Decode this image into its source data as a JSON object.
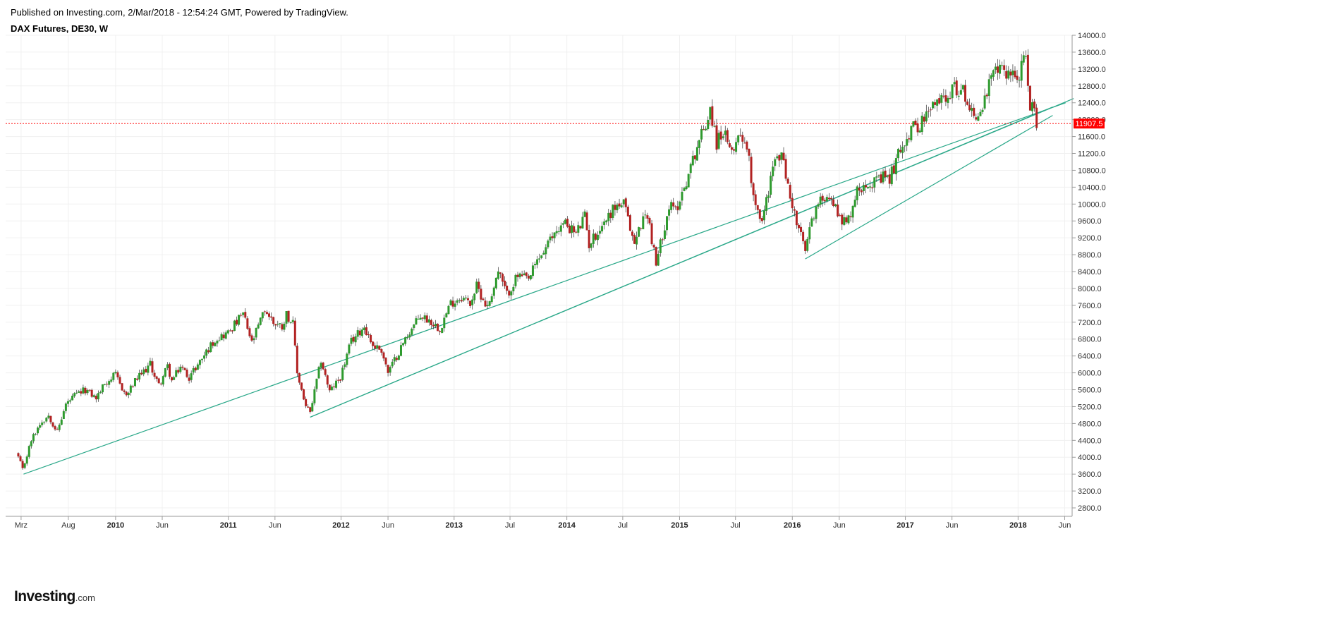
{
  "header": {
    "published": "Published on Investing.com, 2/Mar/2018 - 12:54:24 GMT, Powered by TradingView.",
    "symbol": "DAX Futures, DE30, W"
  },
  "logo": {
    "main": "Investing",
    "suffix": ".com"
  },
  "colors": {
    "up": "#2e9a2e",
    "down": "#b22222",
    "trendline": "#2aa889",
    "price_line": "#ff0000",
    "grid": "#f0f0f0",
    "axis": "#9a9a9a"
  },
  "chart_data": {
    "type": "candlestick",
    "title": "DAX Futures, DE30, W",
    "y_range": [
      2600,
      14000
    ],
    "x_range": [
      "2009-01-10",
      "2018-06-25"
    ],
    "y_ticks": [
      2800,
      3200,
      3600,
      4000,
      4400,
      4800,
      5200,
      5600,
      6000,
      6400,
      6800,
      7200,
      7600,
      8000,
      8400,
      8800,
      9200,
      9600,
      10000,
      10400,
      10800,
      11200,
      11600,
      12000,
      12400,
      12800,
      13200,
      13600,
      14000
    ],
    "y_tick_labels": [
      "2800.0",
      "3200.0",
      "3600.0",
      "4000.0",
      "4400.0",
      "4800.0",
      "5200.0",
      "5600.0",
      "6000.0",
      "6400.0",
      "6800.0",
      "7200.0",
      "7600.0",
      "8000.0",
      "8400.0",
      "8800.0",
      "9200.0",
      "9600.0",
      "10000.0",
      "10400.0",
      "10800.0",
      "11200.0",
      "11600.0",
      "12000.0",
      "12400.0",
      "12800.0",
      "13200.0",
      "13600.0",
      "14000.0"
    ],
    "x_ticks": [
      {
        "label": "Mrz",
        "date": "2009-03-01",
        "bold": false
      },
      {
        "label": "Aug",
        "date": "2009-08-01",
        "bold": false
      },
      {
        "label": "2010",
        "date": "2010-01-01",
        "bold": true
      },
      {
        "label": "Jun",
        "date": "2010-06-01",
        "bold": false
      },
      {
        "label": "2011",
        "date": "2011-01-01",
        "bold": true
      },
      {
        "label": "Jun",
        "date": "2011-06-01",
        "bold": false
      },
      {
        "label": "2012",
        "date": "2012-01-01",
        "bold": true
      },
      {
        "label": "Jun",
        "date": "2012-06-01",
        "bold": false
      },
      {
        "label": "2013",
        "date": "2013-01-01",
        "bold": true
      },
      {
        "label": "Jul",
        "date": "2013-07-01",
        "bold": false
      },
      {
        "label": "2014",
        "date": "2014-01-01",
        "bold": true
      },
      {
        "label": "Jul",
        "date": "2014-07-01",
        "bold": false
      },
      {
        "label": "2015",
        "date": "2015-01-01",
        "bold": true
      },
      {
        "label": "Jul",
        "date": "2015-07-01",
        "bold": false
      },
      {
        "label": "2016",
        "date": "2016-01-01",
        "bold": true
      },
      {
        "label": "Jun",
        "date": "2016-06-01",
        "bold": false
      },
      {
        "label": "2017",
        "date": "2017-01-01",
        "bold": true
      },
      {
        "label": "Jun",
        "date": "2017-06-01",
        "bold": false
      },
      {
        "label": "2018",
        "date": "2018-01-01",
        "bold": true
      },
      {
        "label": "Jun",
        "date": "2018-06-01",
        "bold": false
      }
    ],
    "current_price": 11907.5,
    "current_price_label": "11907.5",
    "price_path": [
      [
        "2009-02-20",
        4000
      ],
      [
        "2009-03-06",
        3700
      ],
      [
        "2009-04-03",
        4400
      ],
      [
        "2009-05-01",
        4800
      ],
      [
        "2009-05-29",
        5000
      ],
      [
        "2009-06-26",
        4600
      ],
      [
        "2009-07-24",
        5250
      ],
      [
        "2009-08-21",
        5450
      ],
      [
        "2009-09-25",
        5600
      ],
      [
        "2009-10-30",
        5400
      ],
      [
        "2009-11-27",
        5750
      ],
      [
        "2009-12-31",
        5950
      ],
      [
        "2010-02-05",
        5450
      ],
      [
        "2010-03-05",
        5800
      ],
      [
        "2010-04-23",
        6200
      ],
      [
        "2010-05-21",
        5700
      ],
      [
        "2010-06-18",
        6150
      ],
      [
        "2010-07-02",
        5800
      ],
      [
        "2010-07-30",
        6150
      ],
      [
        "2010-08-27",
        5900
      ],
      [
        "2010-09-24",
        6200
      ],
      [
        "2010-10-22",
        6500
      ],
      [
        "2010-11-19",
        6800
      ],
      [
        "2010-12-31",
        6950
      ],
      [
        "2011-02-18",
        7400
      ],
      [
        "2011-03-18",
        6700
      ],
      [
        "2011-04-29",
        7500
      ],
      [
        "2011-05-27",
        7200
      ],
      [
        "2011-06-24",
        7100
      ],
      [
        "2011-07-08",
        7400
      ],
      [
        "2011-07-29",
        7150
      ],
      [
        "2011-08-12",
        6000
      ],
      [
        "2011-09-09",
        5200
      ],
      [
        "2011-09-23",
        5050
      ],
      [
        "2011-10-28",
        6300
      ],
      [
        "2011-11-25",
        5550
      ],
      [
        "2011-12-30",
        5900
      ],
      [
        "2012-02-03",
        6750
      ],
      [
        "2012-03-16",
        7100
      ],
      [
        "2012-04-13",
        6650
      ],
      [
        "2012-05-11",
        6550
      ],
      [
        "2012-06-01",
        6000
      ],
      [
        "2012-06-29",
        6400
      ],
      [
        "2012-08-03",
        6900
      ],
      [
        "2012-09-14",
        7350
      ],
      [
        "2012-10-12",
        7250
      ],
      [
        "2012-11-16",
        7050
      ],
      [
        "2012-12-21",
        7650
      ],
      [
        "2013-01-25",
        7800
      ],
      [
        "2013-02-22",
        7650
      ],
      [
        "2013-03-15",
        8050
      ],
      [
        "2013-04-19",
        7550
      ],
      [
        "2013-05-24",
        8400
      ],
      [
        "2013-06-21",
        7850
      ],
      [
        "2013-07-26",
        8300
      ],
      [
        "2013-08-30",
        8200
      ],
      [
        "2013-09-27",
        8650
      ],
      [
        "2013-10-25",
        8950
      ],
      [
        "2013-11-29",
        9400
      ],
      [
        "2013-12-27",
        9550
      ],
      [
        "2014-01-31",
        9300
      ],
      [
        "2014-02-28",
        9700
      ],
      [
        "2014-03-14",
        9050
      ],
      [
        "2014-04-25",
        9500
      ],
      [
        "2014-06-06",
        9950
      ],
      [
        "2014-07-04",
        10000
      ],
      [
        "2014-08-08",
        9050
      ],
      [
        "2014-08-29",
        9550
      ],
      [
        "2014-09-19",
        9800
      ],
      [
        "2014-10-17",
        8550
      ],
      [
        "2014-11-07",
        9300
      ],
      [
        "2014-11-28",
        9950
      ],
      [
        "2014-12-19",
        9850
      ],
      [
        "2015-01-30",
        10700
      ],
      [
        "2015-02-27",
        11400
      ],
      [
        "2015-03-27",
        11900
      ],
      [
        "2015-04-10",
        12300
      ],
      [
        "2015-05-01",
        11450
      ],
      [
        "2015-05-22",
        11750
      ],
      [
        "2015-06-12",
        11200
      ],
      [
        "2015-06-26",
        11400
      ],
      [
        "2015-07-17",
        11700
      ],
      [
        "2015-08-07",
        11400
      ],
      [
        "2015-08-28",
        10250
      ],
      [
        "2015-09-25",
        9550
      ],
      [
        "2015-10-30",
        10900
      ],
      [
        "2015-11-27",
        11200
      ],
      [
        "2015-12-18",
        10400
      ],
      [
        "2016-01-15",
        9550
      ],
      [
        "2016-02-12",
        8900
      ],
      [
        "2016-03-11",
        9800
      ],
      [
        "2016-04-22",
        10300
      ],
      [
        "2016-05-20",
        9900
      ],
      [
        "2016-06-24",
        9500
      ],
      [
        "2016-07-29",
        10300
      ],
      [
        "2016-08-26",
        10550
      ],
      [
        "2016-09-30",
        10500
      ],
      [
        "2016-10-28",
        10650
      ],
      [
        "2016-11-11",
        10600
      ],
      [
        "2016-12-23",
        11450
      ],
      [
        "2017-01-27",
        11800
      ],
      [
        "2017-03-03",
        12000
      ],
      [
        "2017-03-31",
        12300
      ],
      [
        "2017-04-28",
        12500
      ],
      [
        "2017-05-19",
        12650
      ],
      [
        "2017-06-16",
        12750
      ],
      [
        "2017-07-14",
        12600
      ],
      [
        "2017-08-11",
        12100
      ],
      [
        "2017-09-01",
        12150
      ],
      [
        "2017-10-06",
        12950
      ],
      [
        "2017-10-27",
        13200
      ],
      [
        "2017-11-10",
        13150
      ],
      [
        "2017-12-08",
        13150
      ],
      [
        "2017-12-29",
        12950
      ],
      [
        "2018-01-19",
        13400
      ],
      [
        "2018-01-26",
        13350
      ],
      [
        "2018-02-02",
        12800
      ],
      [
        "2018-02-09",
        12100
      ],
      [
        "2018-02-23",
        12450
      ],
      [
        "2018-03-02",
        11900
      ]
    ],
    "trendlines": [
      {
        "from": [
          "2009-03-09",
          3600
        ],
        "to": [
          "2018-06-04",
          12400
        ]
      },
      {
        "from": [
          "2011-09-23",
          4950
        ],
        "to": [
          "2018-04-23",
          12300
        ]
      },
      {
        "from": [
          "2016-02-12",
          8700
        ],
        "to": [
          "2018-04-23",
          12100
        ]
      },
      {
        "from": [
          "2011-09-23",
          4950
        ],
        "to": [
          "2018-06-30",
          12500
        ]
      }
    ]
  }
}
